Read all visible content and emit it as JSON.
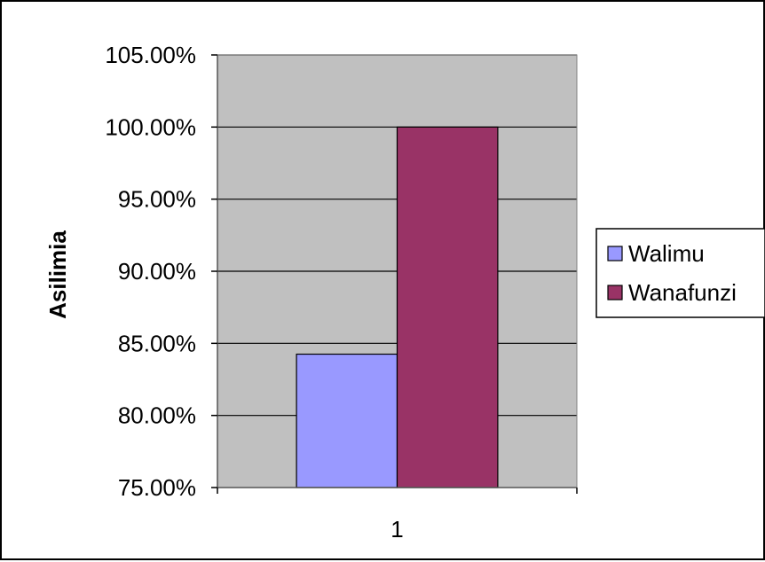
{
  "chart_data": {
    "type": "bar",
    "categories": [
      "1"
    ],
    "series": [
      {
        "name": "Walimu",
        "values": [
          0.8425
        ],
        "color": "#9999ff"
      },
      {
        "name": "Wanafunzi",
        "values": [
          1.0
        ],
        "color": "#993366"
      }
    ],
    "ylabel": "Asilimia",
    "xlabel": "",
    "ylim": [
      0.75,
      1.05
    ],
    "yticks": [
      0.75,
      0.8,
      0.85,
      0.9,
      0.95,
      1.0,
      1.05
    ],
    "ytick_labels": [
      "75.00%",
      "80.00%",
      "85.00%",
      "90.00%",
      "95.00%",
      "100.00%",
      "105.00%"
    ],
    "grid": "horizontal",
    "plot_background": "#c0c0c0",
    "legend_position": "right"
  }
}
